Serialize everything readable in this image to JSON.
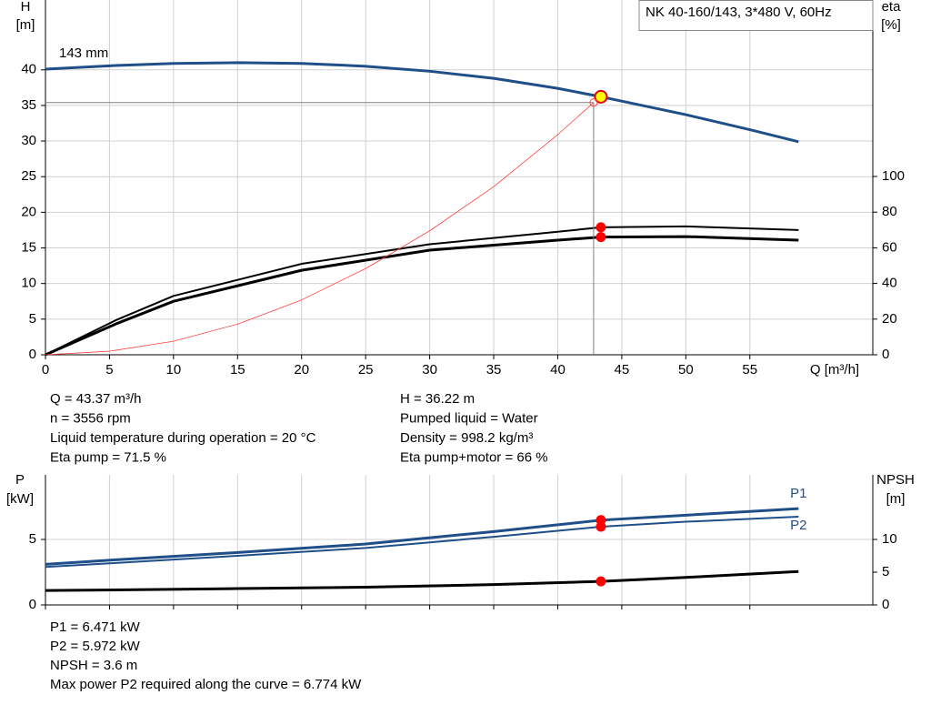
{
  "chart_data": [
    {
      "type": "line",
      "title": "NK 40-160/143, 3*480 V, 60Hz",
      "ylabel": [
        "H",
        "[m]"
      ],
      "y2label": [
        "eta",
        "[%]"
      ],
      "xlabel": "Q [m³/h]",
      "xlim": [
        0,
        64.6
      ],
      "ylim": [
        0,
        49.8
      ],
      "y2lim": [
        0,
        199
      ],
      "xticks": [
        0,
        5,
        10,
        15,
        20,
        25,
        30,
        35,
        40,
        45,
        50,
        55
      ],
      "yticks": [
        0,
        5,
        10,
        15,
        20,
        25,
        30,
        35,
        40
      ],
      "y2ticks": [
        0,
        20,
        40,
        60,
        80,
        100
      ],
      "grid": true,
      "xtick_labels": true,
      "duty_point": {
        "x": 43.37
      },
      "series": [
        {
          "name": "143 mm",
          "color": "#1f4e89",
          "width": 3,
          "marker": "#ffff00",
          "label_pos": "start",
          "x": [
            0,
            5.5,
            10,
            15,
            20,
            25,
            30,
            35,
            40,
            43.37,
            45,
            50,
            55,
            58.8
          ],
          "values": [
            40.1,
            40.6,
            40.9,
            41.0,
            40.9,
            40.5,
            39.8,
            38.8,
            37.4,
            36.22,
            35.6,
            33.7,
            31.6,
            29.9
          ]
        },
        {
          "color": "#000000",
          "width": 2,
          "axis": "y2",
          "marker": "#ff0000",
          "x": [
            0,
            5.5,
            10,
            20,
            30,
            40,
            43.37,
            50,
            58.8
          ],
          "values": [
            0,
            19.4,
            33,
            51,
            62,
            69,
            71.5,
            72,
            70
          ]
        },
        {
          "color": "#000000",
          "width": 3,
          "axis": "y2",
          "marker": "#ff0000",
          "x": [
            0,
            5.5,
            10,
            20,
            30,
            40,
            43.37,
            50,
            58.8
          ],
          "values": [
            0,
            17.3,
            30,
            47.4,
            58.7,
            64.3,
            66,
            66.3,
            64.3
          ]
        },
        {
          "color": "#ff4040",
          "width": 0.8,
          "guides": true,
          "x": [
            0,
            5,
            10,
            15,
            20,
            25,
            30,
            35,
            40,
            42.8
          ],
          "values": [
            0,
            0.5,
            1.9,
            4.3,
            7.7,
            12.1,
            17.4,
            23.6,
            30.9,
            35.4
          ]
        }
      ],
      "info": [
        [
          "Q = 43.37 m³/h",
          "n = 3556 rpm",
          "Liquid temperature during operation = 20 °C",
          "Eta pump = 71.5 %"
        ],
        [
          "H = 36.22 m",
          "Pumped liquid = Water",
          "Density = 998.2 kg/m³",
          "Eta pump+motor = 66 %"
        ]
      ]
    },
    {
      "type": "line",
      "ylabel": [
        "P",
        "[kW]"
      ],
      "y2label": [
        "NPSH",
        "[m]"
      ],
      "xlim": [
        0,
        64.6
      ],
      "ylim": [
        0,
        9.93
      ],
      "y2lim": [
        0,
        19.86
      ],
      "xticks": [
        0,
        5,
        10,
        15,
        20,
        25,
        30,
        35,
        40,
        45,
        50,
        55
      ],
      "yticks": [
        0,
        5
      ],
      "y2ticks": [
        0,
        5,
        10
      ],
      "grid": true,
      "xtick_labels": false,
      "duty_point": {
        "x": 43.37
      },
      "series": [
        {
          "name": "P1",
          "color": "#1f4e89",
          "width": 3,
          "marker": "#ff0000",
          "label_pos": "above",
          "x": [
            0,
            5.5,
            15,
            25,
            35,
            43.37,
            50,
            58.8
          ],
          "values": [
            3.1,
            3.45,
            4.0,
            4.65,
            5.6,
            6.471,
            6.85,
            7.35
          ]
        },
        {
          "name": "P2",
          "color": "#1f4e89",
          "width": 2,
          "marker": "#ff0000",
          "label_pos": "below",
          "x": [
            0,
            5.5,
            15,
            25,
            35,
            43.37,
            50,
            58.8
          ],
          "values": [
            2.9,
            3.2,
            3.75,
            4.35,
            5.2,
            5.972,
            6.35,
            6.74
          ]
        },
        {
          "color": "#000000",
          "width": 3,
          "axis": "y2",
          "marker": "#ff0000",
          "x": [
            0,
            5.5,
            15,
            25,
            35,
            43.37,
            50,
            58.8
          ],
          "values": [
            2.2,
            2.3,
            2.5,
            2.7,
            3.1,
            3.6,
            4.2,
            5.1
          ]
        }
      ],
      "info": [
        [
          "P1 = 6.471 kW",
          "P2 = 5.972 kW",
          "NPSH = 3.6 m",
          "Max power P2 required along the curve = 6.774 kW"
        ]
      ]
    }
  ]
}
